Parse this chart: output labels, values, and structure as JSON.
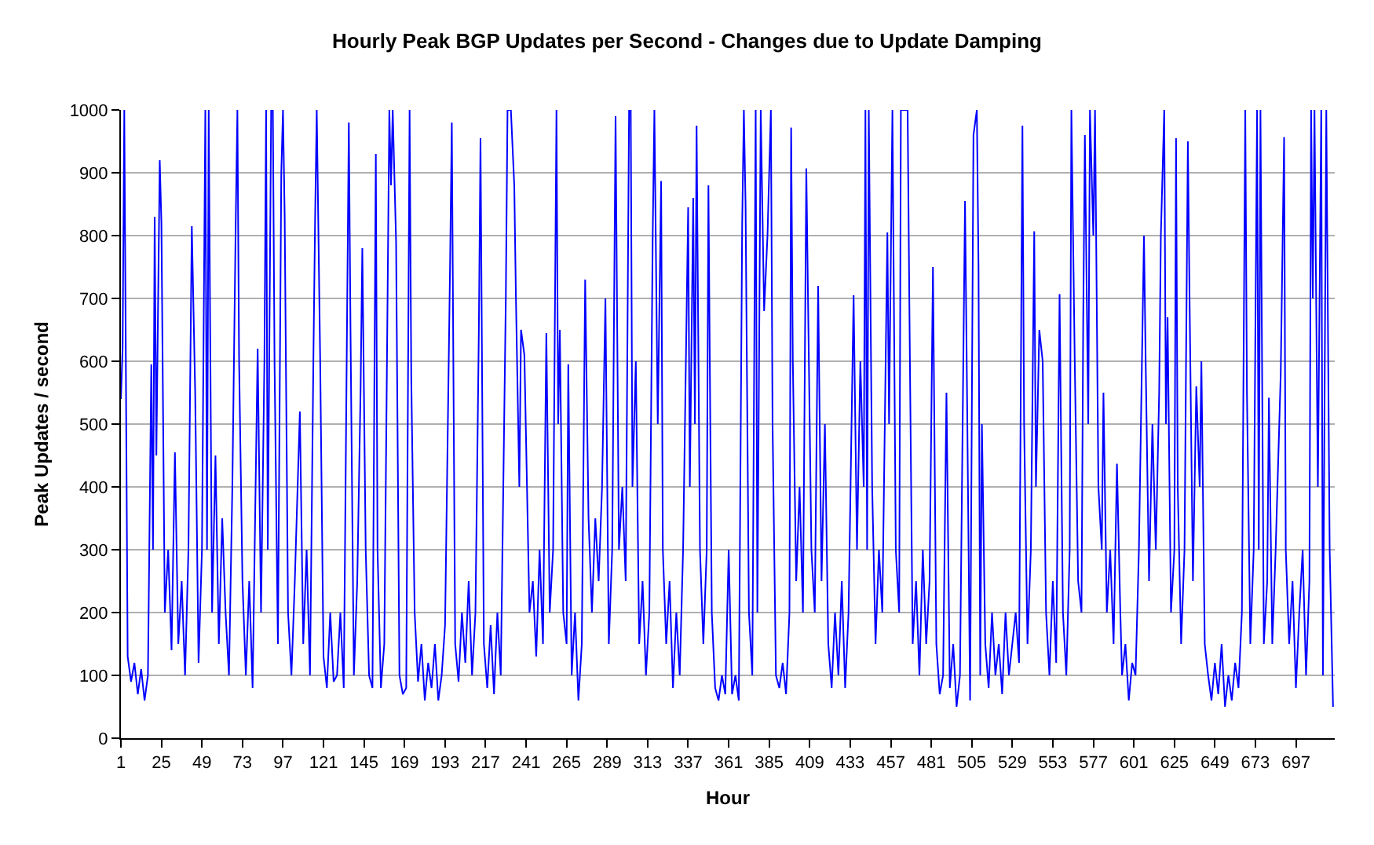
{
  "chart_data": {
    "type": "line",
    "title": "Hourly Peak BGP Updates per Second - Changes due to Update Damping",
    "xlabel": "Hour",
    "ylabel": "Peak Updates / second",
    "x": [
      1,
      2,
      3,
      5,
      7,
      9,
      11,
      13,
      15,
      17,
      19,
      20,
      21,
      22,
      24,
      25,
      27,
      29,
      31,
      33,
      35,
      37,
      39,
      41,
      43,
      45,
      47,
      49,
      51,
      52,
      53,
      55,
      57,
      59,
      61,
      63,
      65,
      67,
      69,
      70,
      71,
      73,
      75,
      77,
      79,
      82,
      84,
      86,
      87,
      88,
      90,
      91,
      92,
      94,
      96,
      97,
      98,
      100,
      102,
      104,
      107,
      109,
      111,
      113,
      115,
      116,
      117,
      119,
      121,
      123,
      125,
      127,
      129,
      131,
      133,
      136,
      137,
      139,
      141,
      143,
      144,
      146,
      148,
      150,
      152,
      153,
      155,
      157,
      160,
      161,
      162,
      164,
      166,
      168,
      170,
      172,
      173,
      175,
      177,
      179,
      181,
      183,
      185,
      187,
      189,
      191,
      193,
      196,
      197,
      199,
      201,
      203,
      205,
      207,
      209,
      211,
      213,
      214,
      216,
      218,
      220,
      222,
      224,
      226,
      229,
      230,
      232,
      234,
      235,
      237,
      238,
      240,
      243,
      245,
      247,
      249,
      251,
      253,
      255,
      257,
      259,
      260,
      261,
      263,
      265,
      266,
      268,
      270,
      272,
      274,
      276,
      278,
      280,
      282,
      284,
      286,
      288,
      290,
      292,
      294,
      296,
      298,
      300,
      302,
      303,
      304,
      306,
      308,
      310,
      312,
      314,
      316,
      317,
      319,
      321,
      322,
      324,
      326,
      328,
      330,
      332,
      334,
      337,
      338,
      340,
      341,
      342,
      344,
      346,
      348,
      349,
      351,
      353,
      355,
      357,
      359,
      361,
      363,
      365,
      367,
      369,
      370,
      371,
      373,
      375,
      377,
      378,
      380,
      382,
      384,
      386,
      387,
      389,
      391,
      393,
      395,
      397,
      398,
      399,
      401,
      403,
      405,
      407,
      408,
      410,
      412,
      414,
      416,
      418,
      420,
      422,
      424,
      426,
      428,
      430,
      432,
      435,
      437,
      439,
      441,
      442,
      443,
      444,
      446,
      448,
      450,
      452,
      455,
      456,
      458,
      460,
      462,
      463,
      465,
      467,
      468,
      470,
      472,
      474,
      476,
      478,
      480,
      482,
      484,
      486,
      488,
      490,
      492,
      494,
      496,
      498,
      501,
      502,
      504,
      506,
      508,
      509,
      510,
      511,
      513,
      515,
      517,
      519,
      521,
      523,
      525,
      527,
      529,
      531,
      533,
      535,
      536,
      538,
      540,
      542,
      543,
      545,
      547,
      549,
      551,
      553,
      555,
      557,
      559,
      561,
      563,
      564,
      566,
      568,
      570,
      571,
      572,
      574,
      575,
      577,
      578,
      580,
      582,
      583,
      585,
      587,
      589,
      591,
      593,
      594,
      596,
      598,
      600,
      602,
      604,
      607,
      608,
      610,
      612,
      614,
      616,
      617,
      619,
      620,
      621,
      623,
      625,
      626,
      627,
      629,
      631,
      633,
      634,
      636,
      638,
      640,
      641,
      643,
      645,
      647,
      649,
      651,
      653,
      655,
      657,
      659,
      661,
      663,
      665,
      667,
      668,
      670,
      672,
      674,
      675,
      676,
      678,
      680,
      681,
      683,
      685,
      688,
      690,
      691,
      693,
      695,
      697,
      699,
      701,
      703,
      705,
      706,
      707,
      708,
      710,
      712,
      713,
      715,
      717,
      719
    ],
    "series": [
      {
        "color": "#0000ff",
        "values": [
          540,
          620,
          1000,
          130,
          90,
          120,
          70,
          110,
          60,
          100,
          595,
          300,
          830,
          450,
          920,
          820,
          200,
          300,
          140,
          455,
          150,
          250,
          100,
          300,
          815,
          550,
          120,
          300,
          1000,
          300,
          1000,
          200,
          450,
          150,
          350,
          200,
          100,
          400,
          820,
          1000,
          600,
          250,
          100,
          250,
          80,
          620,
          200,
          600,
          1000,
          300,
          1000,
          1000,
          600,
          150,
          900,
          1000,
          830,
          200,
          100,
          250,
          520,
          150,
          300,
          100,
          600,
          820,
          1000,
          610,
          130,
          80,
          200,
          90,
          100,
          200,
          80,
          980,
          650,
          100,
          250,
          560,
          780,
          300,
          100,
          80,
          930,
          300,
          80,
          150,
          1000,
          880,
          1000,
          790,
          100,
          70,
          80,
          1000,
          570,
          200,
          90,
          150,
          60,
          120,
          80,
          150,
          60,
          100,
          180,
          760,
          980,
          150,
          90,
          200,
          120,
          250,
          100,
          200,
          645,
          955,
          150,
          80,
          180,
          70,
          200,
          100,
          700,
          1000,
          1000,
          880,
          700,
          400,
          650,
          610,
          200,
          250,
          130,
          300,
          150,
          645,
          200,
          300,
          1000,
          500,
          650,
          200,
          150,
          595,
          100,
          200,
          60,
          150,
          730,
          350,
          200,
          350,
          250,
          400,
          700,
          150,
          300,
          990,
          300,
          400,
          250,
          1000,
          1000,
          400,
          600,
          150,
          250,
          100,
          200,
          800,
          1000,
          500,
          887,
          300,
          150,
          250,
          80,
          200,
          100,
          300,
          845,
          400,
          860,
          500,
          975,
          300,
          150,
          300,
          880,
          200,
          80,
          60,
          100,
          70,
          300,
          70,
          100,
          60,
          818,
          1000,
          850,
          200,
          100,
          1000,
          200,
          1000,
          680,
          800,
          1000,
          500,
          100,
          80,
          120,
          70,
          200,
          972,
          600,
          250,
          400,
          200,
          907,
          700,
          300,
          200,
          720,
          250,
          500,
          150,
          80,
          200,
          100,
          250,
          80,
          200,
          705,
          300,
          600,
          400,
          1000,
          300,
          1000,
          400,
          150,
          300,
          200,
          805,
          500,
          1000,
          300,
          200,
          1000,
          1000,
          1000,
          700,
          150,
          250,
          100,
          300,
          150,
          250,
          750,
          150,
          70,
          100,
          550,
          80,
          150,
          50,
          100,
          855,
          600,
          60,
          960,
          1000,
          750,
          100,
          500,
          150,
          80,
          200,
          100,
          150,
          70,
          200,
          100,
          150,
          200,
          120,
          975,
          500,
          150,
          300,
          807,
          400,
          650,
          600,
          200,
          100,
          250,
          120,
          707,
          200,
          100,
          300,
          1000,
          600,
          250,
          200,
          660,
          960,
          500,
          1000,
          800,
          1000,
          400,
          300,
          550,
          200,
          300,
          150,
          437,
          200,
          100,
          150,
          60,
          120,
          100,
          300,
          800,
          600,
          250,
          500,
          300,
          550,
          800,
          1000,
          500,
          670,
          200,
          300,
          955,
          400,
          150,
          300,
          950,
          700,
          250,
          560,
          400,
          600,
          150,
          100,
          60,
          120,
          70,
          150,
          50,
          100,
          60,
          120,
          80,
          200,
          1000,
          550,
          150,
          300,
          1000,
          300,
          1000,
          150,
          250,
          542,
          150,
          300,
          580,
          957,
          300,
          150,
          250,
          80,
          200,
          300,
          100,
          250,
          1000,
          700,
          1000,
          400,
          1000,
          100,
          1000,
          300,
          50
        ]
      }
    ],
    "xlim": [
      1,
      720
    ],
    "xticks": [
      1,
      25,
      49,
      73,
      97,
      121,
      145,
      169,
      193,
      217,
      241,
      265,
      289,
      313,
      337,
      361,
      385,
      409,
      433,
      457,
      481,
      505,
      529,
      553,
      577,
      601,
      625,
      649,
      673,
      697
    ],
    "ylim": [
      0,
      1000
    ],
    "yticks": [
      0,
      100,
      200,
      300,
      400,
      500,
      600,
      700,
      800,
      900,
      1000
    ],
    "grid": "y",
    "marker": "none",
    "line_style": "solid"
  }
}
